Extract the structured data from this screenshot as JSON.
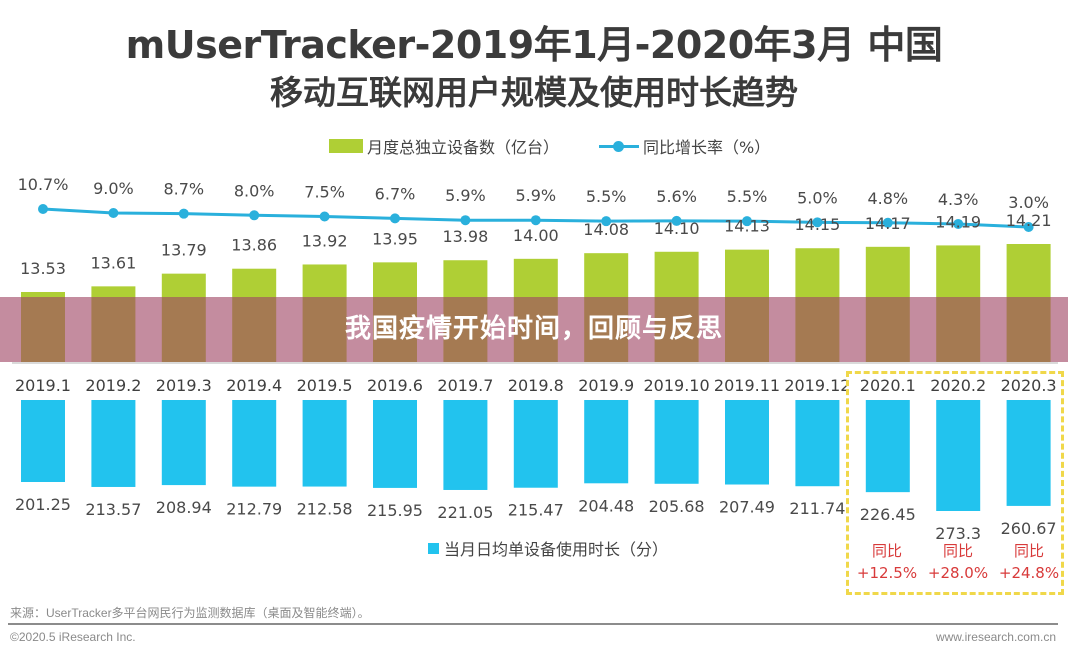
{
  "header": {
    "title_line1": "mUserTracker-2019年1月-2020年3月 中国",
    "title_line2": "移动互联网用户规模及使用时长趋势"
  },
  "legend": {
    "devices": "月度总独立设备数（亿台）",
    "growth": "同比增长率（%）",
    "usage": "当月日均单设备使用时长（分）"
  },
  "banner": {
    "text": "我国疫情开始时间，回顾与反思"
  },
  "highlight": {
    "yoy_label": "同比",
    "items": [
      {
        "month": "2020.1",
        "change": "+12.5%"
      },
      {
        "month": "2020.2",
        "change": "+28.0%"
      },
      {
        "month": "2020.3",
        "change": "+24.8%"
      }
    ]
  },
  "footer": {
    "source": "来源：UserTracker多平台网民行为监测数据库（桌面及智能终端）。",
    "copyright": "©2020.5 iResearch Inc.",
    "website": "www.iresearch.com.cn"
  },
  "colors": {
    "devices_bar": "#afcf35",
    "growth_line": "#2ab0dc",
    "usage_bar": "#22c3ee",
    "highlight_border": "#f0d84a",
    "yoy_text": "#d83a3a"
  },
  "chart_data": {
    "type": "bar",
    "title": "mUserTracker-2019年1月-2020年3月 中国移动互联网用户规模及使用时长趋势",
    "categories": [
      "2019.1",
      "2019.2",
      "2019.3",
      "2019.4",
      "2019.5",
      "2019.6",
      "2019.7",
      "2019.8",
      "2019.9",
      "2019.10",
      "2019.11",
      "2019.12",
      "2020.1",
      "2020.2",
      "2020.3"
    ],
    "series": [
      {
        "name": "月度总独立设备数（亿台）",
        "type": "bar",
        "values": [
          13.53,
          13.61,
          13.79,
          13.86,
          13.92,
          13.95,
          13.98,
          14.0,
          14.08,
          14.1,
          14.13,
          14.15,
          14.17,
          14.19,
          14.21
        ],
        "labels": [
          "13.53",
          "13.61",
          "13.79",
          "13.86",
          "13.92",
          "13.95",
          "13.98",
          "14.00",
          "14.08",
          "14.10",
          "14.13",
          "14.15",
          "14.17",
          "14.19",
          "14.21"
        ]
      },
      {
        "name": "同比增长率（%）",
        "type": "line",
        "values": [
          10.7,
          9.0,
          8.7,
          8.0,
          7.5,
          6.7,
          5.9,
          5.9,
          5.5,
          5.6,
          5.5,
          5.0,
          4.8,
          4.3,
          3.0
        ],
        "labels": [
          "10.7%",
          "9.0%",
          "8.7%",
          "8.0%",
          "7.5%",
          "6.7%",
          "5.9%",
          "5.9%",
          "5.5%",
          "5.6%",
          "5.5%",
          "5.0%",
          "4.8%",
          "4.3%",
          "3.0%"
        ]
      },
      {
        "name": "当月日均单设备使用时长（分）",
        "type": "bar-down",
        "values": [
          201.25,
          213.57,
          208.94,
          212.79,
          212.58,
          215.95,
          221.05,
          215.47,
          204.48,
          205.68,
          207.49,
          211.74,
          226.45,
          273.3,
          260.67
        ],
        "labels": [
          "201.25",
          "213.57",
          "208.94",
          "212.79",
          "212.58",
          "215.95",
          "221.05",
          "215.47",
          "204.48",
          "205.68",
          "207.49",
          "211.74",
          "226.45",
          "273.3",
          "260.67"
        ]
      }
    ],
    "xlabel": "",
    "ylabel": "",
    "grid": false,
    "legend_position": "top"
  }
}
